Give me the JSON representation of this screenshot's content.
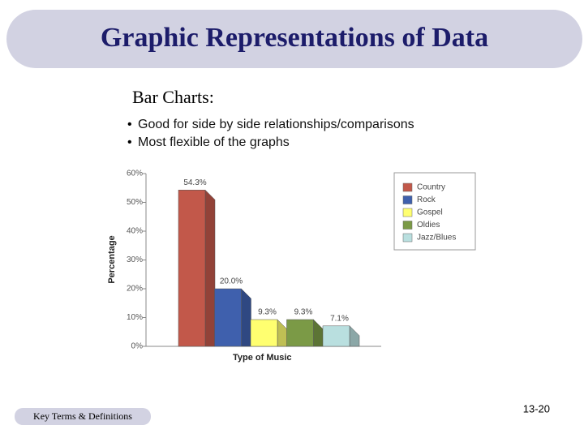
{
  "title": "Graphic Representations of Data",
  "heading": "Bar Charts:",
  "bullets": [
    "Good for side by side relationships/comparisons",
    "Most flexible of the graphs"
  ],
  "footer": "Key Terms & Definitions",
  "page_number": "13-20",
  "chart_data": {
    "type": "bar",
    "categories": [
      "Country",
      "Rock",
      "Gospel",
      "Oldies",
      "Jazz/Blues"
    ],
    "values": [
      54.3,
      20.0,
      9.3,
      9.3,
      7.1
    ],
    "value_labels": [
      "54.3%",
      "20.0%",
      "9.3%",
      "9.3%",
      "7.1%"
    ],
    "colors": [
      "#c2584a",
      "#3f60ad",
      "#ffff70",
      "#7b9a46",
      "#b9dfdf"
    ],
    "xlabel": "Type of Music",
    "ylabel": "Percentage",
    "ylim": [
      0,
      60
    ],
    "yticks": [
      {
        "value": 0,
        "label": "0%"
      },
      {
        "value": 10,
        "label": "10%"
      },
      {
        "value": 20,
        "label": "20%"
      },
      {
        "value": 30,
        "label": "30%"
      },
      {
        "value": 40,
        "label": "40%"
      },
      {
        "value": 50,
        "label": "50%"
      },
      {
        "value": 60,
        "label": "60%"
      }
    ],
    "legend": "right"
  }
}
